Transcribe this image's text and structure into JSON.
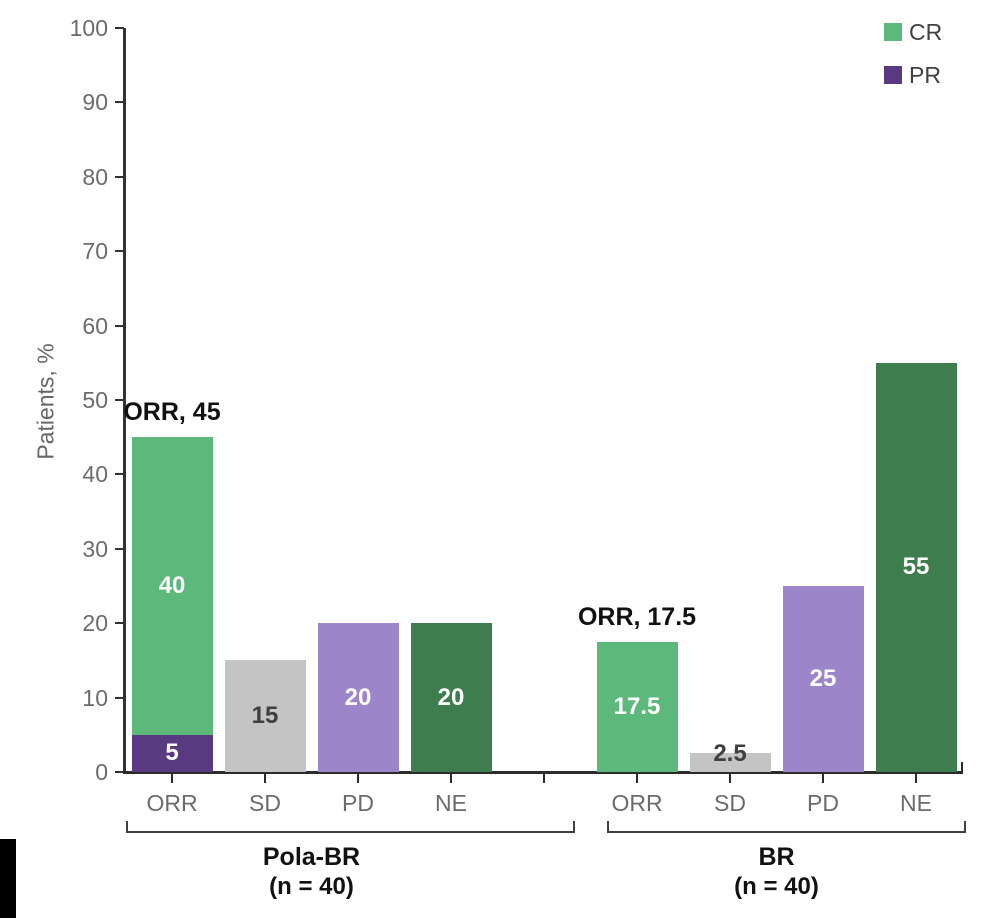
{
  "legend": {
    "items": [
      {
        "label": "CR",
        "color": "#5cb87b"
      },
      {
        "label": "PR",
        "color": "#593a80"
      }
    ]
  },
  "colors": {
    "cr": "#5cb87b",
    "pr": "#593a80",
    "sd": "#c4c4c4",
    "pd": "#9d85ca",
    "ne": "#3e7d4e",
    "value_dark": "#3f3f3f",
    "value_white": "#ffffff"
  },
  "chart_data": {
    "type": "bar",
    "title": "",
    "ylabel": "Patients, %",
    "ylim": [
      0,
      100
    ],
    "y_ticks": [
      0,
      10,
      20,
      30,
      40,
      50,
      60,
      70,
      80,
      90,
      100
    ],
    "grid": false,
    "legend_position": "top-right",
    "legend_series": [
      "CR",
      "PR"
    ],
    "groups": [
      {
        "name": "Pola-BR",
        "n_label": "(n = 40)",
        "annotation": "ORR, 45",
        "bars": [
          {
            "category": "ORR",
            "segments": [
              {
                "series": "PR",
                "value": 5,
                "label": "5",
                "color_key": "pr",
                "label_style": "white"
              },
              {
                "series": "CR",
                "value": 40,
                "label": "40",
                "color_key": "cr",
                "label_style": "white"
              }
            ]
          },
          {
            "category": "SD",
            "segments": [
              {
                "series": "SD",
                "value": 15,
                "label": "15",
                "color_key": "sd",
                "label_style": "dark"
              }
            ]
          },
          {
            "category": "PD",
            "segments": [
              {
                "series": "PD",
                "value": 20,
                "label": "20",
                "color_key": "pd",
                "label_style": "white"
              }
            ]
          },
          {
            "category": "NE",
            "segments": [
              {
                "series": "NE",
                "value": 20,
                "label": "20",
                "color_key": "ne",
                "label_style": "white"
              }
            ]
          }
        ]
      },
      {
        "name": "BR",
        "n_label": "(n = 40)",
        "annotation": "ORR, 17.5",
        "bars": [
          {
            "category": "ORR",
            "segments": [
              {
                "series": "CR",
                "value": 17.5,
                "label": "17.5",
                "color_key": "cr",
                "label_style": "white"
              }
            ]
          },
          {
            "category": "SD",
            "segments": [
              {
                "series": "SD",
                "value": 2.5,
                "label": "2.5",
                "color_key": "sd",
                "label_style": "dark"
              }
            ]
          },
          {
            "category": "PD",
            "segments": [
              {
                "series": "PD",
                "value": 25,
                "label": "25",
                "color_key": "pd",
                "label_style": "white"
              }
            ]
          },
          {
            "category": "NE",
            "segments": [
              {
                "series": "NE",
                "value": 55,
                "label": "55",
                "color_key": "ne",
                "label_style": "white"
              }
            ]
          }
        ]
      }
    ]
  }
}
